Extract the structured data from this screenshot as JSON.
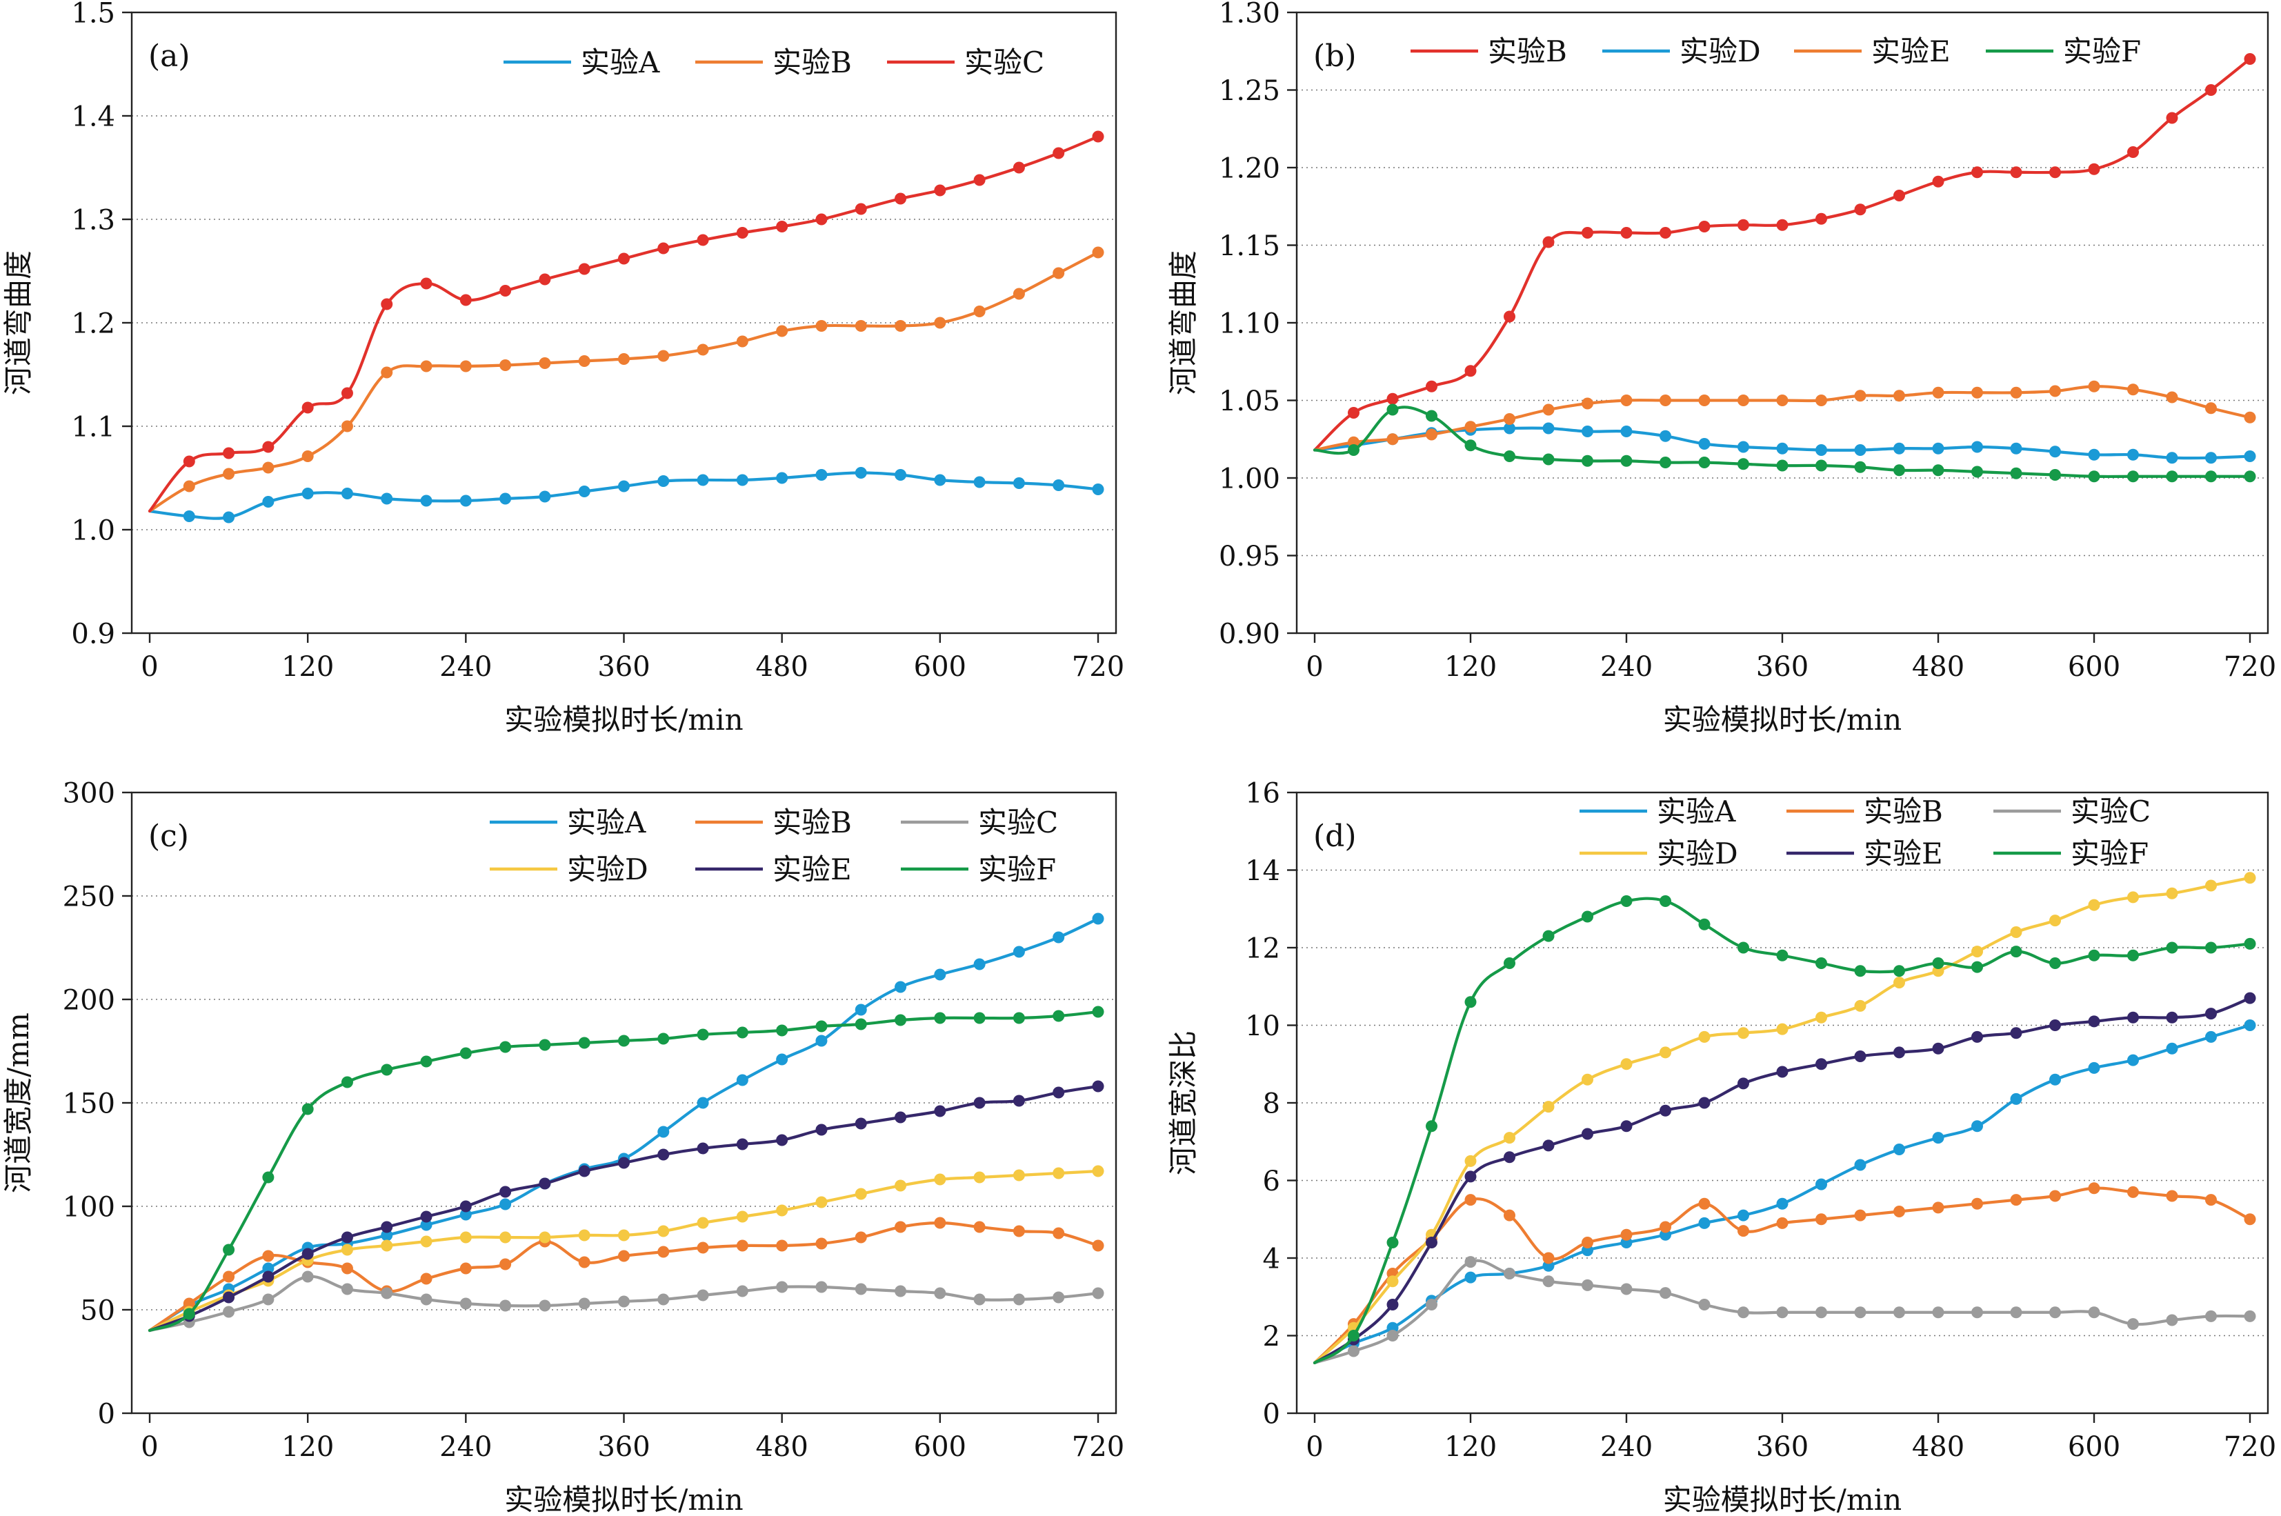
{
  "chart_data": [
    {
      "type": "line",
      "panel_label": "(a)",
      "xlabel": "实验模拟时长/min",
      "ylabel": "河道弯曲度",
      "xlim": [
        0,
        720
      ],
      "ylim": [
        0.9,
        1.5
      ],
      "xticks": [
        0,
        120,
        240,
        360,
        480,
        600,
        720
      ],
      "yticks": [
        0.9,
        1.0,
        1.1,
        1.2,
        1.3,
        1.4,
        1.5
      ],
      "ytick_labels": [
        "0.9",
        "1.0",
        "1.1",
        "1.2",
        "1.3",
        "1.4",
        "1.5"
      ],
      "grid": "horizontal-dotted",
      "legend_position": "top-right",
      "legend_columns": 3,
      "x": [
        0,
        30,
        60,
        90,
        120,
        150,
        180,
        210,
        240,
        270,
        300,
        330,
        360,
        390,
        420,
        450,
        480,
        510,
        540,
        570,
        600,
        630,
        660,
        690,
        720
      ],
      "series": [
        {
          "name": "实验A",
          "color": "#1b9ad6",
          "values": [
            1.018,
            1.013,
            1.012,
            1.027,
            1.035,
            1.035,
            1.03,
            1.028,
            1.028,
            1.03,
            1.032,
            1.037,
            1.042,
            1.047,
            1.048,
            1.048,
            1.05,
            1.053,
            1.055,
            1.053,
            1.048,
            1.046,
            1.045,
            1.043,
            1.039
          ]
        },
        {
          "name": "实验B",
          "color": "#ee7d31",
          "values": [
            1.018,
            1.042,
            1.054,
            1.06,
            1.071,
            1.1,
            1.152,
            1.158,
            1.158,
            1.159,
            1.161,
            1.163,
            1.165,
            1.168,
            1.174,
            1.182,
            1.192,
            1.197,
            1.197,
            1.197,
            1.2,
            1.211,
            1.228,
            1.248,
            1.268
          ]
        },
        {
          "name": "实验C",
          "color": "#e2312b",
          "values": [
            1.018,
            1.066,
            1.074,
            1.08,
            1.118,
            1.132,
            1.218,
            1.238,
            1.222,
            1.231,
            1.242,
            1.252,
            1.262,
            1.272,
            1.28,
            1.287,
            1.293,
            1.3,
            1.31,
            1.32,
            1.328,
            1.338,
            1.35,
            1.364,
            1.38
          ]
        }
      ]
    },
    {
      "type": "line",
      "panel_label": "(b)",
      "xlabel": "实验模拟时长/min",
      "ylabel": "河道弯曲度",
      "xlim": [
        0,
        720
      ],
      "ylim": [
        0.9,
        1.3
      ],
      "xticks": [
        0,
        120,
        240,
        360,
        480,
        600,
        720
      ],
      "yticks": [
        0.9,
        0.95,
        1.0,
        1.05,
        1.1,
        1.15,
        1.2,
        1.25,
        1.3
      ],
      "ytick_labels": [
        "0.90",
        "0.95",
        "1.00",
        "1.05",
        "1.10",
        "1.15",
        "1.20",
        "1.25",
        "1.30"
      ],
      "grid": "horizontal-dotted",
      "legend_position": "top",
      "legend_columns": 4,
      "x": [
        0,
        30,
        60,
        90,
        120,
        150,
        180,
        210,
        240,
        270,
        300,
        330,
        360,
        390,
        420,
        450,
        480,
        510,
        540,
        570,
        600,
        630,
        660,
        690,
        720
      ],
      "series": [
        {
          "name": "实验B",
          "color": "#e2312b",
          "values": [
            1.018,
            1.042,
            1.051,
            1.059,
            1.069,
            1.104,
            1.152,
            1.158,
            1.158,
            1.158,
            1.162,
            1.163,
            1.163,
            1.167,
            1.173,
            1.182,
            1.191,
            1.197,
            1.197,
            1.197,
            1.199,
            1.21,
            1.232,
            1.25,
            1.27
          ]
        },
        {
          "name": "实验D",
          "color": "#1b9ad6",
          "values": [
            1.018,
            1.021,
            1.025,
            1.029,
            1.031,
            1.032,
            1.032,
            1.03,
            1.03,
            1.027,
            1.022,
            1.02,
            1.019,
            1.018,
            1.018,
            1.019,
            1.019,
            1.02,
            1.019,
            1.017,
            1.015,
            1.015,
            1.013,
            1.013,
            1.014
          ]
        },
        {
          "name": "实验E",
          "color": "#ee7d31",
          "values": [
            1.018,
            1.023,
            1.025,
            1.028,
            1.033,
            1.038,
            1.044,
            1.048,
            1.05,
            1.05,
            1.05,
            1.05,
            1.05,
            1.05,
            1.053,
            1.053,
            1.055,
            1.055,
            1.055,
            1.056,
            1.059,
            1.057,
            1.052,
            1.045,
            1.039
          ]
        },
        {
          "name": "实验F",
          "color": "#159a48",
          "values": [
            1.018,
            1.018,
            1.044,
            1.04,
            1.021,
            1.014,
            1.012,
            1.011,
            1.011,
            1.01,
            1.01,
            1.009,
            1.008,
            1.008,
            1.007,
            1.005,
            1.005,
            1.004,
            1.003,
            1.002,
            1.001,
            1.001,
            1.001,
            1.001,
            1.001
          ]
        }
      ]
    },
    {
      "type": "line",
      "panel_label": "(c)",
      "xlabel": "实验模拟时长/min",
      "ylabel": "河道宽度/mm",
      "xlim": [
        0,
        720
      ],
      "ylim": [
        0,
        300
      ],
      "xticks": [
        0,
        120,
        240,
        360,
        480,
        600,
        720
      ],
      "yticks": [
        0,
        50,
        100,
        150,
        200,
        250,
        300
      ],
      "ytick_labels": [
        "0",
        "50",
        "100",
        "150",
        "200",
        "250",
        "300"
      ],
      "grid": "horizontal-dotted",
      "legend_position": "top-right",
      "legend_columns": 3,
      "x": [
        0,
        30,
        60,
        90,
        120,
        150,
        180,
        210,
        240,
        270,
        300,
        330,
        360,
        390,
        420,
        450,
        480,
        510,
        540,
        570,
        600,
        630,
        660,
        690,
        720
      ],
      "series": [
        {
          "name": "实验A",
          "color": "#1b9ad6",
          "values": [
            40,
            52,
            60,
            70,
            80,
            82,
            86,
            91,
            96,
            101,
            111,
            118,
            123,
            136,
            150,
            161,
            171,
            180,
            195,
            206,
            212,
            217,
            223,
            230,
            239
          ]
        },
        {
          "name": "实验B",
          "color": "#ee7d31",
          "values": [
            40,
            53,
            66,
            76,
            73,
            70,
            59,
            65,
            70,
            72,
            83,
            73,
            76,
            78,
            80,
            81,
            81,
            82,
            85,
            90,
            92,
            90,
            88,
            87,
            81
          ]
        },
        {
          "name": "实验C",
          "color": "#9b9b9b",
          "values": [
            40,
            44,
            49,
            55,
            66,
            60,
            58,
            55,
            53,
            52,
            52,
            53,
            54,
            55,
            57,
            59,
            61,
            61,
            60,
            59,
            58,
            55,
            55,
            56,
            58
          ]
        },
        {
          "name": "实验D",
          "color": "#f5c842",
          "values": [
            40,
            49,
            57,
            64,
            74,
            79,
            81,
            83,
            85,
            85,
            85,
            86,
            86,
            88,
            92,
            95,
            98,
            102,
            106,
            110,
            113,
            114,
            115,
            116,
            117
          ]
        },
        {
          "name": "实验E",
          "color": "#35276a",
          "values": [
            40,
            47,
            56,
            66,
            77,
            85,
            90,
            95,
            100,
            107,
            111,
            117,
            121,
            125,
            128,
            130,
            132,
            137,
            140,
            143,
            146,
            150,
            151,
            155,
            158
          ]
        },
        {
          "name": "实验F",
          "color": "#159a48",
          "values": [
            40,
            48,
            79,
            114,
            147,
            160,
            166,
            170,
            174,
            177,
            178,
            179,
            180,
            181,
            183,
            184,
            185,
            187,
            188,
            190,
            191,
            191,
            191,
            192,
            194
          ]
        }
      ]
    },
    {
      "type": "line",
      "panel_label": "(d)",
      "xlabel": "实验模拟时长/min",
      "ylabel": "河道宽深比",
      "xlim": [
        0,
        720
      ],
      "ylim": [
        0,
        16
      ],
      "xticks": [
        0,
        120,
        240,
        360,
        480,
        600,
        720
      ],
      "yticks": [
        0,
        2,
        4,
        6,
        8,
        10,
        12,
        14,
        16
      ],
      "ytick_labels": [
        "0",
        "2",
        "4",
        "6",
        "8",
        "10",
        "12",
        "14",
        "16"
      ],
      "grid": "horizontal-dotted",
      "legend_position": "top-right",
      "legend_columns": 3,
      "x": [
        0,
        30,
        60,
        90,
        120,
        150,
        180,
        210,
        240,
        270,
        300,
        330,
        360,
        390,
        420,
        450,
        480,
        510,
        540,
        570,
        600,
        630,
        660,
        690,
        720
      ],
      "series": [
        {
          "name": "实验A",
          "color": "#1b9ad6",
          "values": [
            1.3,
            1.8,
            2.2,
            2.9,
            3.5,
            3.6,
            3.8,
            4.2,
            4.4,
            4.6,
            4.9,
            5.1,
            5.4,
            5.9,
            6.4,
            6.8,
            7.1,
            7.4,
            8.1,
            8.6,
            8.9,
            9.1,
            9.4,
            9.7,
            10.0
          ]
        },
        {
          "name": "实验B",
          "color": "#ee7d31",
          "values": [
            1.3,
            2.3,
            3.6,
            4.5,
            5.5,
            5.1,
            4.0,
            4.4,
            4.6,
            4.8,
            5.4,
            4.7,
            4.9,
            5.0,
            5.1,
            5.2,
            5.3,
            5.4,
            5.5,
            5.6,
            5.8,
            5.7,
            5.6,
            5.5,
            5.0
          ]
        },
        {
          "name": "实验C",
          "color": "#9b9b9b",
          "values": [
            1.3,
            1.6,
            2.0,
            2.8,
            3.9,
            3.6,
            3.4,
            3.3,
            3.2,
            3.1,
            2.8,
            2.6,
            2.6,
            2.6,
            2.6,
            2.6,
            2.6,
            2.6,
            2.6,
            2.6,
            2.6,
            2.3,
            2.4,
            2.5,
            2.5
          ]
        },
        {
          "name": "实验D",
          "color": "#f5c842",
          "values": [
            1.3,
            2.2,
            3.4,
            4.6,
            6.5,
            7.1,
            7.9,
            8.6,
            9.0,
            9.3,
            9.7,
            9.8,
            9.9,
            10.2,
            10.5,
            11.1,
            11.4,
            11.9,
            12.4,
            12.7,
            13.1,
            13.3,
            13.4,
            13.6,
            13.8
          ]
        },
        {
          "name": "实验E",
          "color": "#35276a",
          "values": [
            1.3,
            1.9,
            2.8,
            4.4,
            6.1,
            6.6,
            6.9,
            7.2,
            7.4,
            7.8,
            8.0,
            8.5,
            8.8,
            9.0,
            9.2,
            9.3,
            9.4,
            9.7,
            9.8,
            10.0,
            10.1,
            10.2,
            10.2,
            10.3,
            10.7
          ]
        },
        {
          "name": "实验F",
          "color": "#159a48",
          "values": [
            1.3,
            2.0,
            4.4,
            7.4,
            10.6,
            11.6,
            12.3,
            12.8,
            13.2,
            13.2,
            12.6,
            12.0,
            11.8,
            11.6,
            11.4,
            11.4,
            11.6,
            11.5,
            11.9,
            11.6,
            11.8,
            11.8,
            12.0,
            12.0,
            12.1
          ]
        }
      ]
    }
  ]
}
